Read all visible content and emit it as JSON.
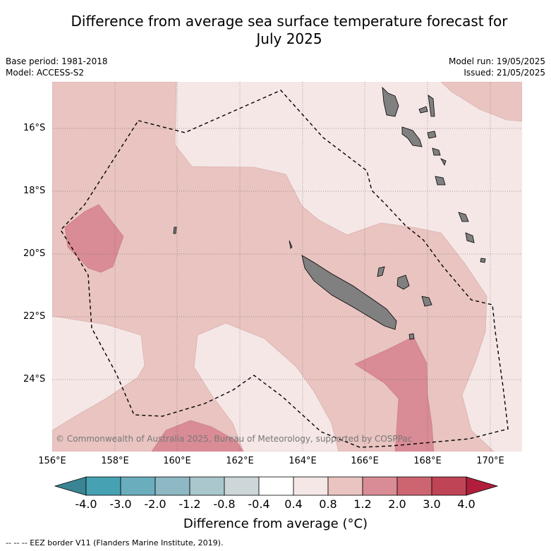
{
  "title_line1": "Difference from average sea surface temperature forecast for",
  "title_line2": "July 2025",
  "base_period": "Base period: 1981-2018",
  "model": "Model: ACCESS-S2",
  "model_run": "Model run: 19/05/2025",
  "issued": "Issued: 21/05/2025",
  "lat_labels": [
    "16°S",
    "18°S",
    "20°S",
    "22°S",
    "24°S"
  ],
  "lon_labels": [
    "156°E",
    "158°E",
    "160°E",
    "162°E",
    "164°E",
    "166°E",
    "168°E",
    "170°E"
  ],
  "copyright": "© Commonwealth of Australia 2025, Bureau of Meteorology, supported by COSPPac",
  "colorbar": {
    "labels": [
      "-4.0",
      "-3.0",
      "-2.0",
      "-1.2",
      "-0.8",
      "-0.4",
      "0.4",
      "0.8",
      "1.2",
      "2.0",
      "3.0",
      "4.0"
    ],
    "colors": [
      "#3b8494",
      "#46a2b3",
      "#6aadbd",
      "#8db8c4",
      "#a9c7cc",
      "#cdd7d9",
      "#ffffff",
      "#f5e7e6",
      "#e9c4c1",
      "#d98c95",
      "#cd6570",
      "#bf4455",
      "#b01e3c"
    ],
    "title": "Difference from average (°C)"
  },
  "footnote": "--  --  -- EEZ border V11 (Flanders Marine Institute, 2019).",
  "map_colors": {
    "band_0_4_0_8": "#f5e7e6",
    "band_0_8_1_2": "#e9c4c1",
    "band_1_2_2_0": "#d98c95",
    "land": "#808080"
  }
}
